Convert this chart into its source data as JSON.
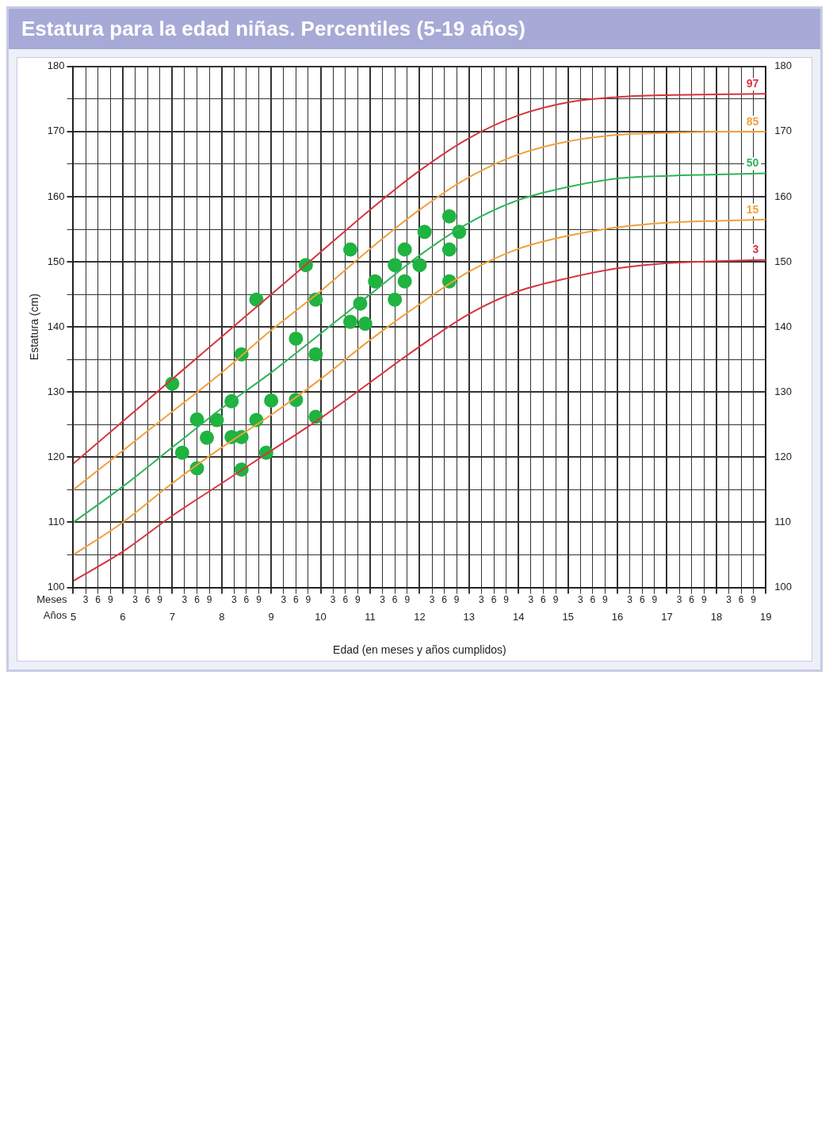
{
  "chart_data": {
    "type": "line",
    "title": "Estatura para la edad niñas. Percentiles (5-19 años)",
    "xlabel": "Edad (en meses y años cumplidos)",
    "ylabel": "Estatura (cm)",
    "annotations": [
      "Meses",
      "Años",
      "3",
      "6",
      "9",
      "3",
      "6",
      "9",
      "3",
      "6",
      "9",
      "3",
      "6",
      "9",
      "3",
      "6",
      "9",
      "3",
      "6",
      "9",
      "3",
      "6",
      "9",
      "3",
      "6",
      "9",
      "3",
      "6",
      "9",
      "3",
      "6",
      "9",
      "3",
      "6",
      "9",
      "3",
      "6",
      "9",
      "3",
      "6",
      "9",
      "3",
      "6",
      "9"
    ],
    "x": [
      5,
      6,
      7,
      8,
      9,
      10,
      11,
      12,
      13,
      14,
      15,
      16,
      17,
      18,
      19
    ],
    "series": [
      {
        "name": "97",
        "color": "#d8343f",
        "values": [
          119,
          125.5,
          132,
          138.5,
          145,
          151.5,
          158,
          164,
          169,
          172.5,
          174.5,
          175.3,
          175.6,
          175.7,
          175.8
        ]
      },
      {
        "name": "85",
        "color": "#f0a03c",
        "values": [
          115,
          121,
          127,
          133,
          139.5,
          145.5,
          152,
          158,
          163,
          166.5,
          168.5,
          169.5,
          169.8,
          170,
          170
        ]
      },
      {
        "name": "50",
        "color": "#2fb458",
        "values": [
          110,
          115.5,
          121.5,
          127.5,
          133,
          139,
          145,
          151,
          156,
          159.5,
          161.5,
          162.8,
          163.2,
          163.4,
          163.6
        ]
      },
      {
        "name": "15",
        "color": "#f0a03c",
        "values": [
          105,
          110,
          116,
          121.5,
          126.5,
          132,
          138,
          143.5,
          148.5,
          152,
          154,
          155.3,
          156,
          156.3,
          156.5
        ]
      },
      {
        "name": "3",
        "color": "#d8343f",
        "values": [
          101,
          105.5,
          111,
          116,
          121,
          126,
          131.5,
          137,
          142,
          145.5,
          147.5,
          149,
          149.8,
          150.1,
          150.3
        ]
      },
      {
        "type": "scatter",
        "marker": "circle",
        "color": "#1fb340",
        "x": [
          7.0,
          7.2,
          7.5,
          7.5,
          7.7,
          7.9,
          8.2,
          8.2,
          8.4,
          8.4,
          8.4,
          8.7,
          8.7,
          8.9,
          9.0,
          9.5,
          9.5,
          9.7,
          9.9,
          9.9,
          9.9,
          10.6,
          10.6,
          10.9,
          10.8,
          11.1,
          11.5,
          11.5,
          11.7,
          11.7,
          12.0,
          12.1,
          12.6,
          12.6,
          12.6,
          12.8
        ],
        "values": [
          131.3,
          120.7,
          118.3,
          125.8,
          123.0,
          125.7,
          128.6,
          123.1,
          123.1,
          118.1,
          135.8,
          125.7,
          144.2,
          120.7,
          128.7,
          128.8,
          138.2,
          149.5,
          126.2,
          135.8,
          144.2,
          151.9,
          140.8,
          140.5,
          143.6,
          147.0,
          144.2,
          149.5,
          147.0,
          151.9,
          149.5,
          154.6,
          151.9,
          157.0,
          147.0,
          154.6
        ]
      }
    ],
    "marker": "none",
    "legend": false,
    "grid": true,
    "xlim": [
      5,
      19
    ],
    "xticks": [
      5,
      {
        "value": 5.25,
        "label": null
      },
      {
        "value": 5.5,
        "label": null
      },
      {
        "value": 5.75,
        "label": null
      },
      6,
      {
        "value": 6.25,
        "label": null
      },
      {
        "value": 6.5,
        "label": null
      },
      {
        "value": 6.75,
        "label": null
      },
      7,
      {
        "value": 7.25,
        "label": null
      },
      {
        "value": 7.5,
        "label": null
      },
      {
        "value": 7.75,
        "label": null
      },
      8,
      {
        "value": 8.25,
        "label": null
      },
      {
        "value": 8.5,
        "label": null
      },
      {
        "value": 8.75,
        "label": null
      },
      9,
      {
        "value": 9.25,
        "label": null
      },
      {
        "value": 9.5,
        "label": null
      },
      {
        "value": 9.75,
        "label": null
      },
      10,
      {
        "value": 10.25,
        "label": null
      },
      {
        "value": 10.5,
        "label": null
      },
      {
        "value": 10.75,
        "label": null
      },
      11,
      {
        "value": 11.25,
        "label": null
      },
      {
        "value": 11.5,
        "label": null
      },
      {
        "value": 11.75,
        "label": null
      },
      12,
      {
        "value": 12.25,
        "label": null
      },
      {
        "value": 12.5,
        "label": null
      },
      {
        "value": 12.75,
        "label": null
      },
      13,
      {
        "value": 13.25,
        "label": null
      },
      {
        "value": 13.5,
        "label": null
      },
      {
        "value": 13.75,
        "label": null
      },
      14,
      {
        "value": 14.25,
        "label": null
      },
      {
        "value": 14.5,
        "label": null
      },
      {
        "value": 14.75,
        "label": null
      },
      15,
      {
        "value": 15.25,
        "label": null
      },
      {
        "value": 15.5,
        "label": null
      },
      {
        "value": 15.75,
        "label": null
      },
      16,
      {
        "value": 16.25,
        "label": null
      },
      {
        "value": 16.5,
        "label": null
      },
      {
        "value": 16.75,
        "label": null
      },
      17,
      {
        "value": 17.25,
        "label": null
      },
      {
        "value": 17.5,
        "label": null
      },
      {
        "value": 17.75,
        "label": null
      },
      18,
      {
        "value": 18.25,
        "label": null
      },
      {
        "value": 18.5,
        "label": null
      },
      {
        "value": 18.75,
        "label": null
      },
      19
    ],
    "ylim": [
      100,
      180
    ],
    "yticks": [
      100,
      {
        "value": 105,
        "label": null
      },
      110,
      {
        "value": 115,
        "label": null
      },
      120,
      {
        "value": 125,
        "label": null
      },
      130,
      {
        "value": 135,
        "label": null
      },
      140,
      {
        "value": 145,
        "label": null
      },
      150,
      {
        "value": 155,
        "label": null
      },
      160,
      {
        "value": 165,
        "label": null
      },
      170,
      {
        "value": 175,
        "label": null
      },
      180
    ],
    "y2lim": [
      100,
      180
    ],
    "y2ticks": [
      100,
      110,
      120,
      130,
      140,
      150,
      160,
      170,
      180
    ]
  }
}
